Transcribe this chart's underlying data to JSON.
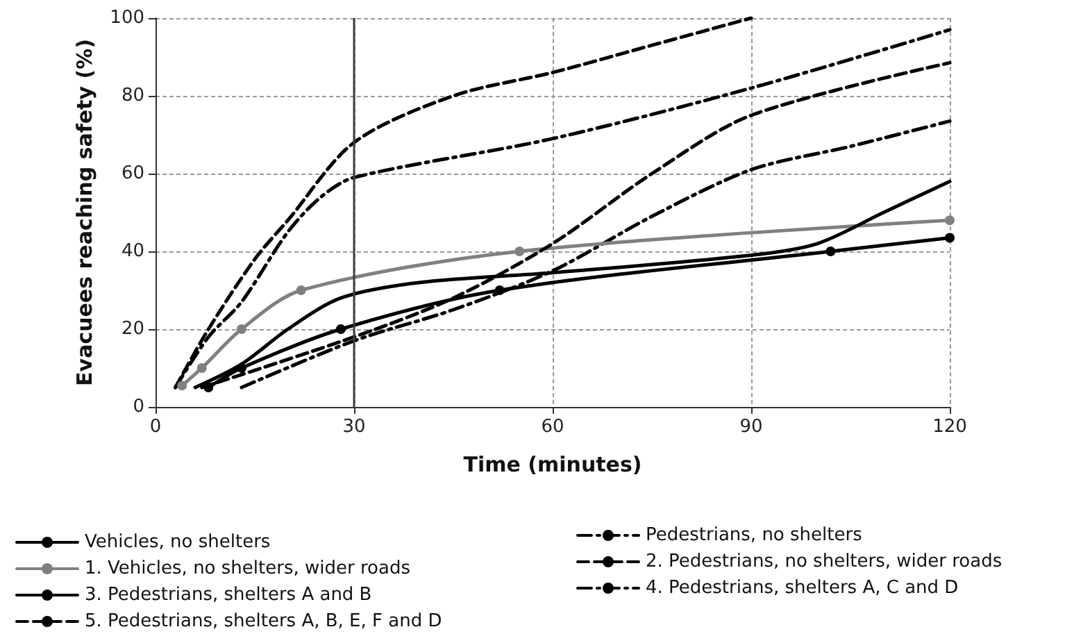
{
  "chart_data": {
    "type": "line",
    "xlabel": "Time (minutes)",
    "ylabel": "Evacuees reaching safety (%)",
    "xlim": [
      0,
      120
    ],
    "xticks": [
      0,
      30,
      60,
      90,
      120
    ],
    "ylim": [
      0,
      100
    ],
    "yticks": [
      0,
      20,
      40,
      60,
      80,
      100
    ],
    "grid": true,
    "legend": "bottom",
    "ref_lines": [
      {
        "axis": "x",
        "value": 30,
        "color": "#404040",
        "line_style": "solid"
      }
    ],
    "series": [
      {
        "name": "Vehicles, no shelters",
        "color": "#000000",
        "line_style": "solid",
        "marker": "circle",
        "x": [
          8,
          13,
          28,
          52,
          102,
          120
        ],
        "values": [
          5,
          10,
          20,
          30,
          40,
          43.5
        ]
      },
      {
        "name": "Pedestrians, no shelters",
        "color": "#000000",
        "line_style": "dashdot",
        "marker": "none",
        "x": [
          13,
          30,
          45,
          60,
          75,
          90,
          105,
          120
        ],
        "values": [
          5,
          17,
          25,
          35,
          49,
          61,
          67,
          73.5
        ]
      },
      {
        "name": "1. Vehicles, no shelters, wider roads",
        "color": "#808080",
        "line_style": "solid",
        "marker": "circle",
        "x": [
          4,
          7,
          13,
          22,
          55,
          120
        ],
        "values": [
          5.5,
          10,
          20,
          30,
          40,
          48
        ]
      },
      {
        "name": "2. Pedestrians, no shelters, wider roads",
        "color": "#000000",
        "line_style": "dashed",
        "marker": "none",
        "x": [
          7,
          30,
          45,
          60,
          75,
          90,
          120
        ],
        "values": [
          5,
          18,
          28,
          42,
          60,
          75,
          88.5
        ]
      },
      {
        "name": "3. Pedestrians, shelters A and B",
        "color": "#000000",
        "line_style": "solid",
        "marker": "none",
        "x": [
          6,
          13,
          20,
          28,
          40,
          60,
          90,
          100,
          110,
          120
        ],
        "values": [
          5,
          11,
          20,
          28,
          32,
          34.5,
          39,
          42,
          50,
          58
        ]
      },
      {
        "name": "4. Pedestrians, shelters A, C and D",
        "color": "#000000",
        "line_style": "dashdot",
        "marker": "none",
        "x": [
          3,
          8,
          13,
          20,
          25,
          30,
          60,
          90,
          120
        ],
        "values": [
          5,
          18,
          27,
          45,
          54,
          59,
          69,
          82,
          97
        ]
      },
      {
        "name": "5. Pedestrians, shelters A, B, E, F and D",
        "color": "#000000",
        "line_style": "dashed",
        "marker": "none",
        "x": [
          3,
          8,
          15,
          20,
          30,
          45,
          60,
          75,
          90
        ],
        "values": [
          5,
          20,
          38,
          48,
          68,
          80,
          86,
          93,
          100
        ]
      }
    ]
  }
}
